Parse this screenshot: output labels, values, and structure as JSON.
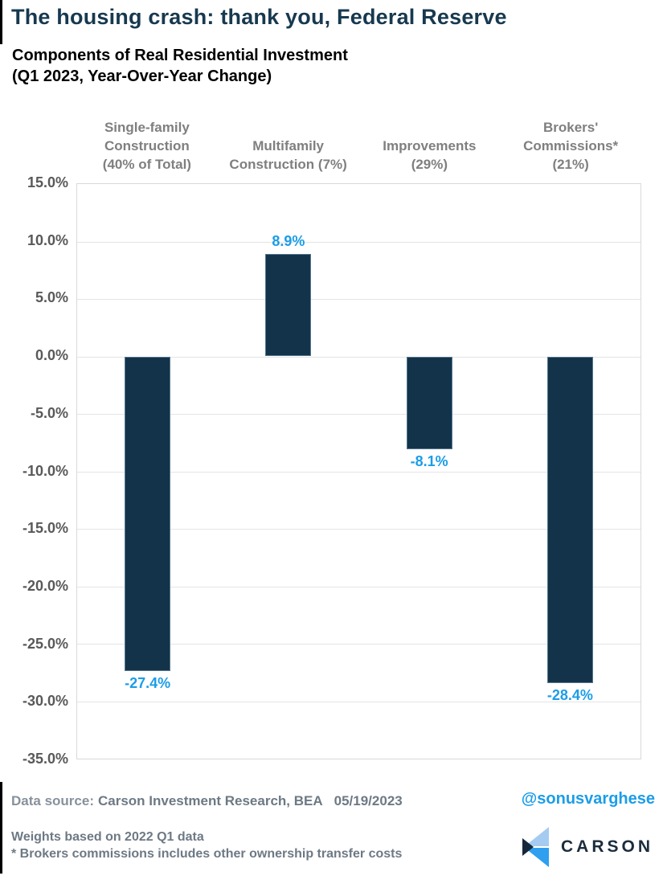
{
  "header": {
    "title": "The housing crash: thank you, Federal Reserve",
    "subtitle_line1": "Components of Real Residential Investment",
    "subtitle_line2": "(Q1 2023, Year-Over-Year Change)"
  },
  "chart_data": {
    "type": "bar",
    "title": "Components of Real Residential Investment (Q1 2023, Year-Over-Year Change)",
    "categories": [
      "Single-family Construction (40% of Total)",
      "Multifamily Construction (7%)",
      "Improvements (29%)",
      "Brokers' Commissions* (21%)"
    ],
    "category_lines": [
      [
        "Single-family",
        "Construction",
        "(40% of Total)"
      ],
      [
        "Multifamily",
        "Construction (7%)"
      ],
      [
        "Improvements",
        "(29%)"
      ],
      [
        "Brokers'",
        "Commissions*",
        "(21%)"
      ]
    ],
    "values": [
      -27.4,
      8.9,
      -8.1,
      -28.4
    ],
    "value_labels": [
      "-27.4%",
      "8.9%",
      "-8.1%",
      "-28.4%"
    ],
    "ylim": [
      -35,
      15
    ],
    "ytick_step": 5,
    "ytick_labels": [
      "15.0%",
      "10.0%",
      "5.0%",
      "0.0%",
      "-5.0%",
      "-10.0%",
      "-15.0%",
      "-20.0%",
      "-25.0%",
      "-30.0%",
      "-35.0%"
    ],
    "grid": true,
    "legend": "none",
    "bar_color": "#123349",
    "value_label_color": "#1b9de8"
  },
  "footer": {
    "data_source_label": "Data source:",
    "data_source_value": "Carson Investment Research, BEA",
    "date": "05/19/2023",
    "handle": "@sonusvarghese",
    "note1": "Weights based on 2022 Q1 data",
    "note2": "* Brokers commissions includes other ownership transfer costs",
    "logo_text": "CARSON"
  },
  "colors": {
    "title_navy": "#17394f",
    "bar_navy": "#123349",
    "accent_blue": "#1b9de8",
    "footer_gray": "#6d7984",
    "tick_gray": "#595959",
    "category_gray": "#7f7f7f"
  }
}
